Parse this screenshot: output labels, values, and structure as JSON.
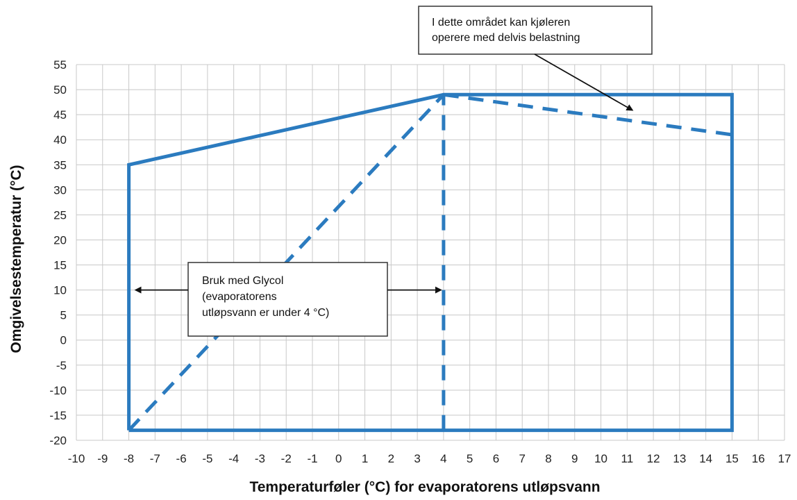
{
  "chart_data": {
    "type": "line",
    "xlabel": "Temperaturføler (°C) for evaporatorens utløpsvann",
    "ylabel": "Omgivelsestemperatur (°C)",
    "xlim": [
      -10,
      17
    ],
    "ylim": [
      -20,
      55
    ],
    "x_ticks": [
      "-10",
      "-9",
      "-8",
      "-7",
      "-6",
      "-5",
      "-4",
      "-3",
      "-2",
      "-1",
      "0",
      "1",
      "2",
      "3",
      "4",
      "5",
      "6",
      "7",
      "8",
      "9",
      "10",
      "11",
      "12",
      "13",
      "14",
      "15",
      "16",
      "17"
    ],
    "y_ticks": [
      "55",
      "50",
      "45",
      "40",
      "35",
      "30",
      "25",
      "20",
      "15",
      "10",
      "5",
      "0",
      "-5",
      "-10",
      "-15",
      "-20"
    ],
    "grid": true,
    "colors": {
      "series": "#2b7bbf",
      "grid": "#c8c8c8",
      "text": "#222222"
    },
    "series": [
      {
        "style": "solid",
        "x": [
          -8,
          -8,
          4,
          15,
          15,
          -8
        ],
        "y": [
          -18,
          35,
          49,
          49,
          -18,
          -18
        ]
      },
      {
        "style": "dashed",
        "x": [
          -8,
          4
        ],
        "y": [
          -18,
          49
        ]
      },
      {
        "style": "dashed",
        "x": [
          4,
          4
        ],
        "y": [
          -18,
          49
        ]
      },
      {
        "style": "dashed",
        "x": [
          4,
          15
        ],
        "y": [
          49,
          41
        ]
      }
    ],
    "annotations": [
      {
        "lines": [
          "I dette området kan kjøleren",
          "operere med delvis belastning"
        ],
        "arrow_to": [
          11.3,
          45.5
        ]
      },
      {
        "lines": [
          "Bruk med Glycol",
          "(evaporatorens",
          "utløpsvann er under 4 °C)"
        ],
        "arrows_to": [
          [
            -8,
            10
          ],
          [
            4,
            10
          ]
        ]
      }
    ]
  }
}
